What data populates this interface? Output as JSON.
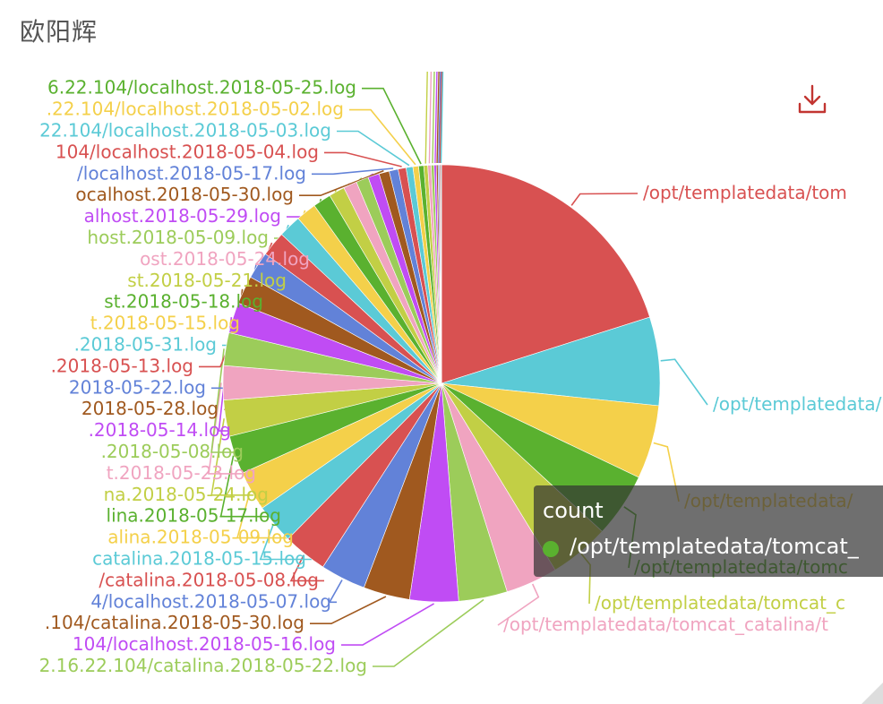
{
  "card": {
    "title": "欧阳辉"
  },
  "toolbar": {
    "download_icon": "download-icon",
    "download_color": "#c23531"
  },
  "tooltip": {
    "title": "count",
    "item": "/opt/templatedata/tomcat_",
    "color": "#5ab12f"
  },
  "chart_data": {
    "type": "pie",
    "series_name": "count",
    "slices": [
      {
        "label": "/opt/templatedata/tom",
        "value": 24.0,
        "color": "#d85151"
      },
      {
        "label": "/opt/templatedata/",
        "value": 7.8,
        "color": "#5bcad6"
      },
      {
        "label": "/opt/templatedata/",
        "value": 6.5,
        "color": "#f4d04a"
      },
      {
        "label": "/opt/templatedata/tomc",
        "value": 5.7,
        "color": "#5ab12f"
      },
      {
        "label": "/opt/templatedata/tomcat_c",
        "value": 5.3,
        "color": "#c2cf45"
      },
      {
        "label": "/opt/templatedata/tomcat_catalina/t",
        "value": 4.6,
        "color": "#f0a4c0"
      },
      {
        "label": "2.16.22.104/catalina.2018-05-22.log",
        "value": 4.3,
        "color": "#9ccc5a"
      },
      {
        "label": "104/localhost.2018-05-16.log",
        "value": 4.3,
        "color": "#c04cf4"
      },
      {
        "label": ".104/catalina.2018-05-30.log",
        "value": 4.1,
        "color": "#a0591f"
      },
      {
        "label": "4/localhost.2018-05-07.log",
        "value": 4.0,
        "color": "#6282d8"
      },
      {
        "label": "/catalina.2018-05-08.log",
        "value": 3.9,
        "color": "#d85151"
      },
      {
        "label": "catalina.2018-05-15.log",
        "value": 3.5,
        "color": "#5bcad6"
      },
      {
        "label": "alina.2018-05-09.log",
        "value": 3.5,
        "color": "#f4d04a"
      },
      {
        "label": "lina.2018-05-17.log",
        "value": 3.4,
        "color": "#5ab12f"
      },
      {
        "label": "na.2018-05-24.log",
        "value": 3.2,
        "color": "#c2cf45"
      },
      {
        "label": "t.2018-05-23.log",
        "value": 3.0,
        "color": "#f0a4c0"
      },
      {
        "label": ".2018-05-08.log",
        "value": 2.9,
        "color": "#9ccc5a"
      },
      {
        "label": ".2018-05-14.log",
        "value": 2.7,
        "color": "#c04cf4"
      },
      {
        "label": "2018-05-28.log",
        "value": 2.5,
        "color": "#a0591f"
      },
      {
        "label": "2018-05-22.log",
        "value": 2.4,
        "color": "#6282d8"
      },
      {
        "label": ".2018-05-13.log",
        "value": 2.2,
        "color": "#d85151"
      },
      {
        "label": ".2018-05-31.log",
        "value": 2.0,
        "color": "#5bcad6"
      },
      {
        "label": "t.2018-05-15.log",
        "value": 1.8,
        "color": "#f4d04a"
      },
      {
        "label": "st.2018-05-18.log",
        "value": 1.6,
        "color": "#5ab12f"
      },
      {
        "label": "st.2018-05-21.log",
        "value": 1.4,
        "color": "#c2cf45"
      },
      {
        "label": "ost.2018-05-24.log",
        "value": 1.2,
        "color": "#f0a4c0"
      },
      {
        "label": "host.2018-05-09.log",
        "value": 1.1,
        "color": "#9ccc5a"
      },
      {
        "label": "alhost.2018-05-29.log",
        "value": 1.0,
        "color": "#c04cf4"
      },
      {
        "label": "ocalhost.2018-05-30.log",
        "value": 0.9,
        "color": "#a0591f"
      },
      {
        "label": "/localhost.2018-05-17.log",
        "value": 0.8,
        "color": "#6282d8"
      },
      {
        "label": "104/localhost.2018-05-04.log",
        "value": 0.7,
        "color": "#d85151"
      },
      {
        "label": "22.104/localhost.2018-05-03.log",
        "value": 0.6,
        "color": "#5bcad6"
      },
      {
        "label": ".22.104/localhost.2018-05-02.log",
        "value": 0.5,
        "color": "#f4d04a"
      },
      {
        "label": "6.22.104/localhost.2018-05-25.log",
        "value": 0.45,
        "color": "#5ab12f"
      },
      {
        "label": "",
        "value": 0.35,
        "color": "#c2cf45"
      },
      {
        "label": "",
        "value": 0.3,
        "color": "#f0a4c0"
      },
      {
        "label": "",
        "value": 0.25,
        "color": "#9ccc5a"
      },
      {
        "label": "",
        "value": 0.2,
        "color": "#c04cf4"
      },
      {
        "label": "",
        "value": 0.15,
        "color": "#a0591f"
      },
      {
        "label": "",
        "value": 0.12,
        "color": "#6282d8"
      },
      {
        "label": "",
        "value": 0.1,
        "color": "#d85151"
      },
      {
        "label": "",
        "value": 0.08,
        "color": "#5bcad6"
      }
    ]
  }
}
